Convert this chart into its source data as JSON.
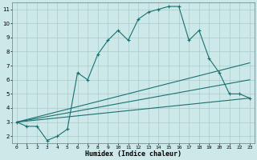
{
  "xlabel": "Humidex (Indice chaleur)",
  "bg_color": "#cce8e8",
  "grid_color": "#aacccc",
  "line_color": "#1a7070",
  "xlim": [
    -0.5,
    23.5
  ],
  "ylim": [
    1.5,
    11.5
  ],
  "xticks": [
    0,
    1,
    2,
    3,
    4,
    5,
    6,
    7,
    8,
    9,
    10,
    11,
    12,
    13,
    14,
    15,
    16,
    17,
    18,
    19,
    20,
    21,
    22,
    23
  ],
  "yticks": [
    2,
    3,
    4,
    5,
    6,
    7,
    8,
    9,
    10,
    11
  ],
  "main_x": [
    0,
    1,
    2,
    3,
    4,
    5,
    6,
    7,
    8,
    9,
    10,
    11,
    12,
    13,
    14,
    15,
    16,
    17,
    18,
    19,
    20,
    21,
    22,
    23
  ],
  "main_y": [
    3.0,
    2.7,
    2.7,
    1.7,
    2.0,
    2.5,
    6.5,
    6.0,
    7.8,
    8.8,
    9.5,
    8.8,
    10.3,
    10.8,
    11.0,
    11.2,
    11.2,
    8.8,
    9.5,
    7.5,
    6.5,
    5.0,
    5.0,
    4.7
  ],
  "line2_x": [
    0,
    23
  ],
  "line2_y": [
    3.0,
    7.2
  ],
  "line3_x": [
    0,
    23
  ],
  "line3_y": [
    3.0,
    6.0
  ],
  "line4_x": [
    0,
    23
  ],
  "line4_y": [
    3.0,
    4.7
  ]
}
